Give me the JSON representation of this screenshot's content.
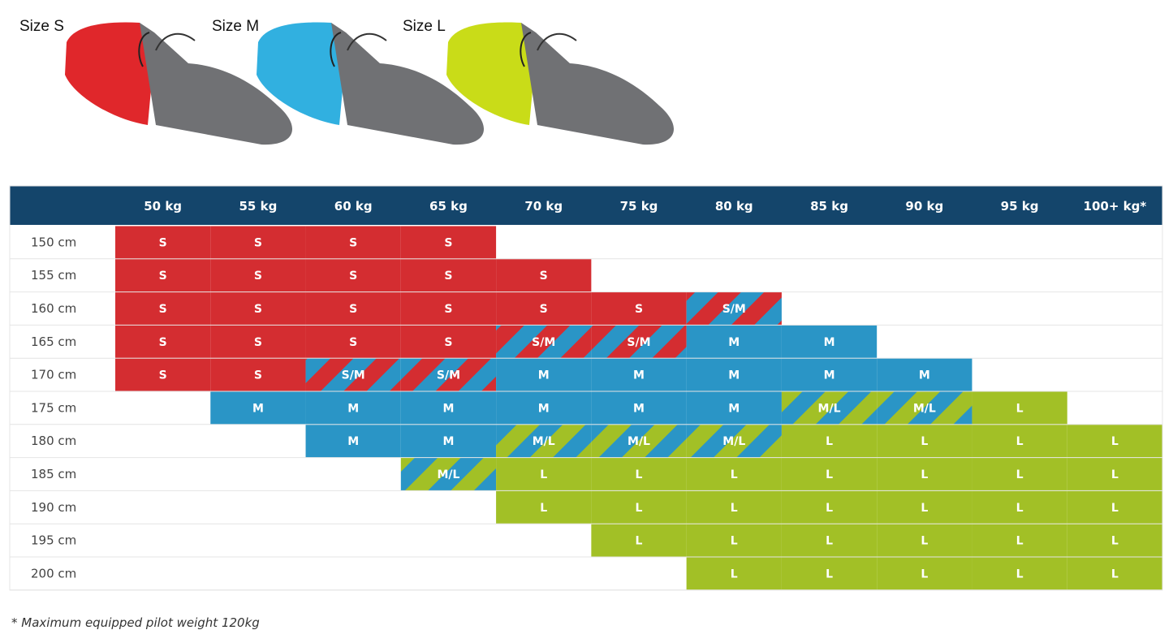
{
  "sizes": [
    {
      "label": "Size S",
      "code": "S",
      "color": "#e0272b"
    },
    {
      "label": "Size M",
      "code": "M",
      "color": "#31b0e0"
    },
    {
      "label": "Size L",
      "code": "L",
      "color": "#c9dc18"
    }
  ],
  "harness_grey": "#707174",
  "colors": {
    "header_bg": "#14456b",
    "header_text": "#ffffff",
    "row_line": "#e4e4e4",
    "height_text": "#444444",
    "S": "#d42d31",
    "M": "#2a95c6",
    "L": "#a2c026"
  },
  "chart_data": {
    "type": "table",
    "columns": [
      "50 kg",
      "55 kg",
      "60 kg",
      "65 kg",
      "70 kg",
      "75 kg",
      "80 kg",
      "85 kg",
      "90 kg",
      "95 kg",
      "100+ kg*"
    ],
    "rows": [
      {
        "height": "150 cm",
        "cells": [
          "S",
          "S",
          "S",
          "S",
          "",
          "",
          "",
          "",
          "",
          "",
          ""
        ]
      },
      {
        "height": "155 cm",
        "cells": [
          "S",
          "S",
          "S",
          "S",
          "S",
          "",
          "",
          "",
          "",
          "",
          ""
        ]
      },
      {
        "height": "160 cm",
        "cells": [
          "S",
          "S",
          "S",
          "S",
          "S",
          "S",
          "S/M",
          "",
          "",
          "",
          ""
        ]
      },
      {
        "height": "165 cm",
        "cells": [
          "S",
          "S",
          "S",
          "S",
          "S/M",
          "S/M",
          "M",
          "M",
          "",
          "",
          ""
        ]
      },
      {
        "height": "170 cm",
        "cells": [
          "S",
          "S",
          "S/M",
          "S/M",
          "M",
          "M",
          "M",
          "M",
          "M",
          "",
          ""
        ]
      },
      {
        "height": "175 cm",
        "cells": [
          "",
          "M",
          "M",
          "M",
          "M",
          "M",
          "M",
          "M/L",
          "M/L",
          "L",
          ""
        ]
      },
      {
        "height": "180 cm",
        "cells": [
          "",
          "",
          "M",
          "M",
          "M/L",
          "M/L",
          "M/L",
          "L",
          "L",
          "L",
          "L"
        ]
      },
      {
        "height": "185 cm",
        "cells": [
          "",
          "",
          "",
          "M/L",
          "L",
          "L",
          "L",
          "L",
          "L",
          "L",
          "L"
        ]
      },
      {
        "height": "190 cm",
        "cells": [
          "",
          "",
          "",
          "",
          "L",
          "L",
          "L",
          "L",
          "L",
          "L",
          "L"
        ]
      },
      {
        "height": "195 cm",
        "cells": [
          "",
          "",
          "",
          "",
          "",
          "L",
          "L",
          "L",
          "L",
          "L",
          "L"
        ]
      },
      {
        "height": "200 cm",
        "cells": [
          "",
          "",
          "",
          "",
          "",
          "",
          "L",
          "L",
          "L",
          "L",
          "L"
        ]
      }
    ]
  },
  "footnote": "* Maximum equipped pilot weight 120kg"
}
